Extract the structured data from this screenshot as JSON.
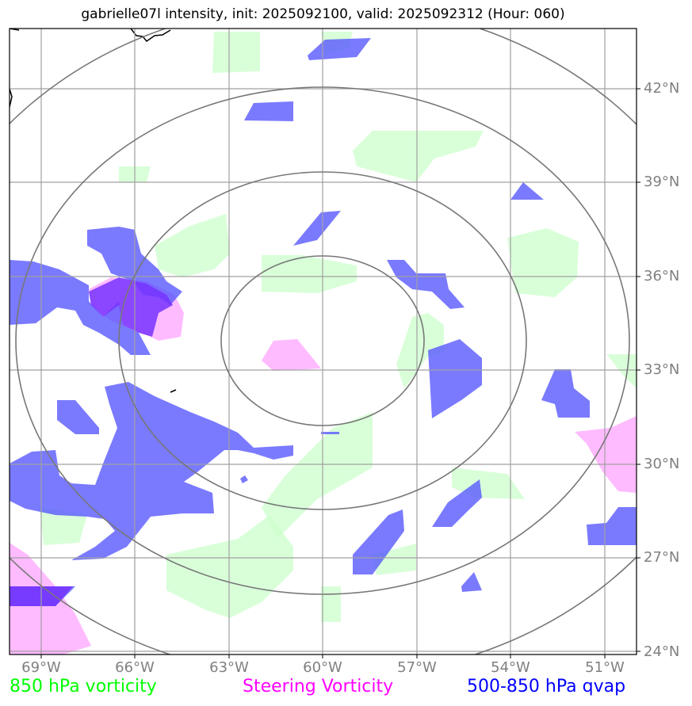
{
  "title": "gabrielle07l intensity, init: 2025092100, valid: 2025092312 (Hour: 060)",
  "map": {
    "lat_labels": [
      "42°N",
      "39°N",
      "36°N",
      "33°N",
      "30°N",
      "27°N",
      "24°N"
    ],
    "lon_labels": [
      "69°W",
      "66°W",
      "63°W",
      "60°W",
      "57°W",
      "54°W",
      "51°W"
    ],
    "lat_range": [
      23.9,
      44.0
    ],
    "lon_range": [
      -70.0,
      -50.0
    ],
    "range_rings": 4
  },
  "colors": {
    "vorticity_850": "#ccffcc",
    "steering_vorticity": "#ffaaff",
    "qvap": "#5555ff",
    "overlap": "#7733ff",
    "grid": "#a0a0a0",
    "rings": "#777777"
  },
  "legend": {
    "vorticity_850": "850 hPa vorticity",
    "steering_vorticity": "Steering Vorticity",
    "qvap": "500-850 hPa qvap"
  }
}
